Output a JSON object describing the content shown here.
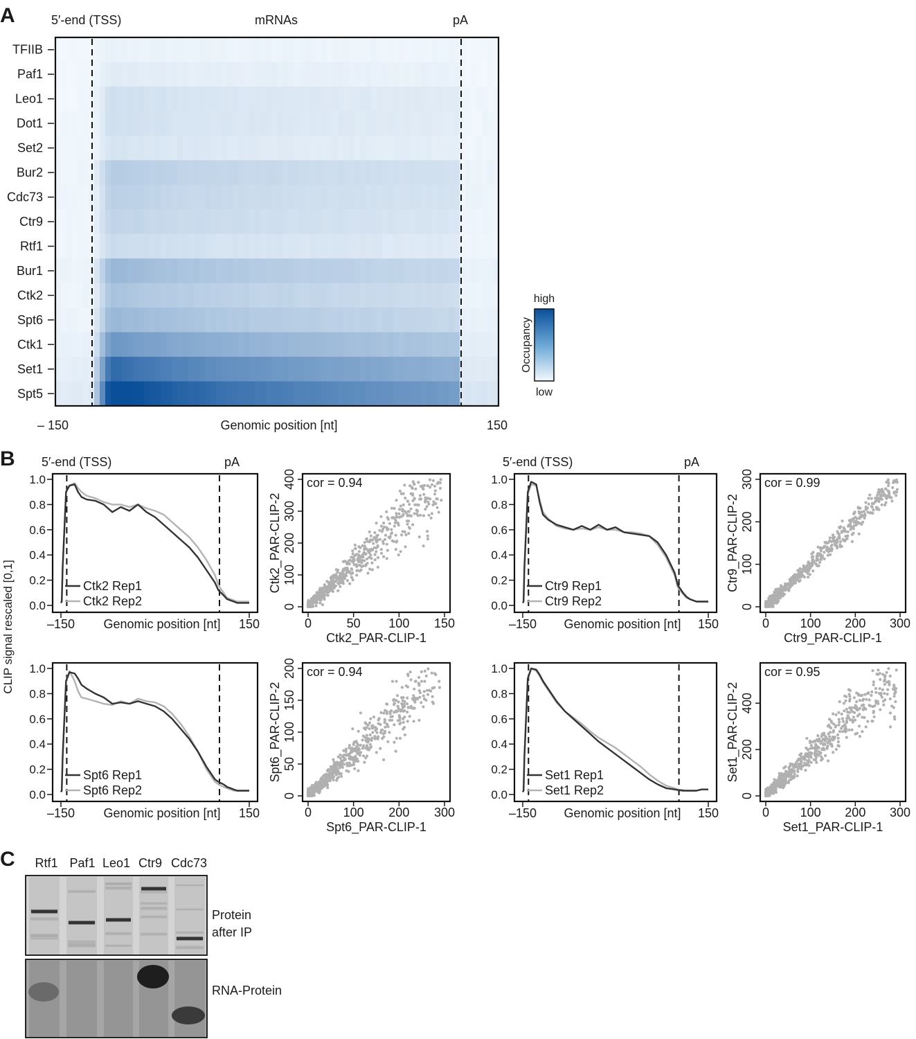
{
  "panels": {
    "a": "A",
    "b": "B",
    "c": "C"
  },
  "panel_a": {
    "top_labels": {
      "tss": "5′-end (TSS)",
      "mid": "mRNAs",
      "pa": "pA"
    },
    "xlabel": "Genomic position [nt]",
    "xticks": {
      "left": "– 150",
      "right": "150"
    },
    "rows": [
      "TFIIB",
      "Paf1",
      "Leo1",
      "Dot1",
      "Set2",
      "Bur2",
      "Cdc73",
      "Ctr9",
      "Rtf1",
      "Bur1",
      "Ctk2",
      "Spt6",
      "Ctk1",
      "Set1",
      "Spt5"
    ],
    "intensity": [
      0.03,
      0.06,
      0.12,
      0.12,
      0.1,
      0.22,
      0.2,
      0.18,
      0.14,
      0.32,
      0.26,
      0.32,
      0.48,
      0.7,
      0.9
    ],
    "colorbar": {
      "high": "high",
      "low": "low",
      "title": "Occupancy",
      "color_high": "#0a4f9a",
      "color_low": "#f2f8fd"
    }
  },
  "chart_data": [
    {
      "type": "line",
      "title": "",
      "top_labels": {
        "tss": "5′-end (TSS)",
        "pa": "pA"
      },
      "xlabel": "Genomic position [nt]",
      "ylabel": "CLIP signal rescaled [0,1]",
      "xticks": [
        "–150",
        "150"
      ],
      "yticks": [
        "0.0",
        "0.2",
        "0.4",
        "0.6",
        "0.8",
        "1.0"
      ],
      "ylim": [
        0,
        1
      ],
      "x": [
        0,
        0.5,
        1,
        3,
        5,
        8,
        10,
        12,
        15,
        20,
        25,
        30,
        35,
        40,
        45,
        50,
        55,
        60,
        65,
        70,
        75,
        80,
        85,
        90,
        92,
        95,
        97,
        99,
        101,
        103,
        106,
        110
      ],
      "series": [
        {
          "name": "Ctk2 Rep1",
          "color": "#333333",
          "values": [
            0.02,
            0.03,
            0.3,
            0.9,
            0.95,
            0.96,
            0.9,
            0.86,
            0.84,
            0.83,
            0.8,
            0.74,
            0.78,
            0.75,
            0.8,
            0.74,
            0.7,
            0.64,
            0.58,
            0.52,
            0.46,
            0.38,
            0.28,
            0.18,
            0.12,
            0.08,
            0.05,
            0.04,
            0.03,
            0.02,
            0.02,
            0.02
          ]
        },
        {
          "name": "Ctk2 Rep2",
          "color": "#b3b3b3",
          "values": [
            0.02,
            0.03,
            0.3,
            0.9,
            0.95,
            0.97,
            0.93,
            0.9,
            0.87,
            0.85,
            0.82,
            0.8,
            0.8,
            0.78,
            0.8,
            0.77,
            0.75,
            0.72,
            0.66,
            0.6,
            0.54,
            0.46,
            0.36,
            0.24,
            0.16,
            0.1,
            0.06,
            0.05,
            0.04,
            0.03,
            0.03,
            0.03
          ]
        }
      ]
    },
    {
      "type": "scatter",
      "title": "",
      "annotation": "cor =  0.94",
      "xlabel": "Ctk2_PAR-CLIP-1",
      "ylabel": "Ctk2_PAR-CLIP-2",
      "xticks": [
        "0",
        "50",
        "100",
        "150"
      ],
      "yticks": [
        "0",
        "100",
        "200",
        "300",
        "400"
      ],
      "xlim": [
        0,
        150
      ],
      "ylim": [
        0,
        400
      ],
      "cor": 0.94,
      "slope": 2.67
    },
    {
      "type": "line",
      "title": "",
      "top_labels": {
        "tss": "5′-end (TSS)",
        "pa": "pA"
      },
      "xlabel": "Genomic position [nt]",
      "ylabel": "",
      "xticks": [
        "–150",
        "150"
      ],
      "yticks": [
        "0.0",
        "0.2",
        "0.4",
        "0.6",
        "0.8",
        "1.0"
      ],
      "ylim": [
        0,
        1
      ],
      "x": [
        0,
        0.5,
        1,
        3,
        5,
        8,
        10,
        12,
        15,
        20,
        25,
        30,
        35,
        40,
        45,
        50,
        55,
        60,
        65,
        70,
        75,
        80,
        85,
        90,
        92,
        95,
        97,
        99,
        101,
        103,
        106,
        110
      ],
      "series": [
        {
          "name": "Ctr9 Rep1",
          "color": "#333333",
          "values": [
            0.02,
            0.03,
            0.3,
            0.9,
            0.98,
            0.96,
            0.82,
            0.72,
            0.68,
            0.64,
            0.62,
            0.6,
            0.63,
            0.6,
            0.64,
            0.6,
            0.62,
            0.58,
            0.57,
            0.56,
            0.55,
            0.5,
            0.4,
            0.26,
            0.16,
            0.1,
            0.07,
            0.05,
            0.04,
            0.03,
            0.03,
            0.03
          ]
        },
        {
          "name": "Ctr9 Rep2",
          "color": "#b3b3b3",
          "values": [
            0.02,
            0.03,
            0.3,
            0.88,
            0.96,
            0.95,
            0.84,
            0.74,
            0.69,
            0.63,
            0.61,
            0.6,
            0.61,
            0.6,
            0.62,
            0.6,
            0.6,
            0.58,
            0.58,
            0.57,
            0.55,
            0.48,
            0.38,
            0.24,
            0.14,
            0.09,
            0.06,
            0.05,
            0.04,
            0.03,
            0.03,
            0.03
          ]
        }
      ]
    },
    {
      "type": "scatter",
      "title": "",
      "annotation": "cor =  0.99",
      "xlabel": "Ctr9_PAR-CLIP-1",
      "ylabel": "Ctr9_PAR-CLIP-2",
      "xticks": [
        "0",
        "100",
        "200",
        "300"
      ],
      "yticks": [
        "0",
        "100",
        "200",
        "300"
      ],
      "xlim": [
        0,
        300
      ],
      "ylim": [
        0,
        300
      ],
      "cor": 0.99,
      "slope": 1.0
    },
    {
      "type": "line",
      "title": "",
      "xlabel": "Genomic position [nt]",
      "ylabel": "",
      "xticks": [
        "–150",
        "150"
      ],
      "yticks": [
        "0.0",
        "0.2",
        "0.4",
        "0.6",
        "0.8",
        "1.0"
      ],
      "ylim": [
        0,
        1
      ],
      "x": [
        0,
        0.5,
        1,
        3,
        5,
        8,
        10,
        12,
        15,
        20,
        25,
        30,
        35,
        40,
        45,
        50,
        55,
        60,
        65,
        70,
        75,
        80,
        85,
        90,
        92,
        95,
        97,
        99,
        101,
        103,
        106,
        110
      ],
      "series": [
        {
          "name": "Spt6 Rep1",
          "color": "#333333",
          "values": [
            0.02,
            0.03,
            0.3,
            0.9,
            0.97,
            0.96,
            0.92,
            0.87,
            0.84,
            0.8,
            0.77,
            0.72,
            0.73,
            0.72,
            0.74,
            0.72,
            0.7,
            0.66,
            0.6,
            0.52,
            0.44,
            0.34,
            0.22,
            0.12,
            0.1,
            0.08,
            0.06,
            0.05,
            0.04,
            0.03,
            0.03,
            0.03
          ]
        },
        {
          "name": "Spt6 Rep2",
          "color": "#b3b3b3",
          "values": [
            0.02,
            0.03,
            0.3,
            0.9,
            0.98,
            0.9,
            0.82,
            0.77,
            0.76,
            0.74,
            0.72,
            0.71,
            0.74,
            0.72,
            0.76,
            0.74,
            0.73,
            0.7,
            0.64,
            0.56,
            0.46,
            0.34,
            0.2,
            0.1,
            0.08,
            0.06,
            0.05,
            0.04,
            0.03,
            0.03,
            0.03,
            0.03
          ]
        }
      ]
    },
    {
      "type": "scatter",
      "title": "",
      "annotation": "cor =  0.94",
      "xlabel": "Spt6_PAR-CLIP-1",
      "ylabel": "Spt6_PAR-CLIP-2",
      "xticks": [
        "0",
        "100",
        "200",
        "300"
      ],
      "yticks": [
        "0",
        "50",
        "100",
        "150",
        "200"
      ],
      "xlim": [
        0,
        300
      ],
      "ylim": [
        0,
        200
      ],
      "cor": 0.94,
      "slope": 0.67
    },
    {
      "type": "line",
      "title": "",
      "xlabel": "Genomic position [nt]",
      "ylabel": "",
      "xticks": [
        "–150",
        "150"
      ],
      "yticks": [
        "0.0",
        "0.2",
        "0.4",
        "0.6",
        "0.8",
        "1.0"
      ],
      "ylim": [
        0,
        1
      ],
      "x": [
        0,
        0.5,
        1,
        3,
        5,
        8,
        10,
        12,
        15,
        20,
        25,
        30,
        35,
        40,
        45,
        50,
        55,
        60,
        65,
        70,
        75,
        80,
        85,
        90,
        92,
        95,
        97,
        99,
        101,
        103,
        106,
        110
      ],
      "series": [
        {
          "name": "Set1 Rep1",
          "color": "#333333",
          "values": [
            0.02,
            0.03,
            0.3,
            0.92,
            1.0,
            0.99,
            0.95,
            0.9,
            0.84,
            0.74,
            0.66,
            0.6,
            0.54,
            0.48,
            0.42,
            0.37,
            0.32,
            0.27,
            0.22,
            0.17,
            0.12,
            0.08,
            0.05,
            0.04,
            0.035,
            0.03,
            0.03,
            0.03,
            0.03,
            0.03,
            0.04,
            0.04
          ]
        },
        {
          "name": "Set1 Rep2",
          "color": "#b3b3b3",
          "values": [
            0.02,
            0.03,
            0.3,
            0.92,
            1.0,
            0.98,
            0.94,
            0.89,
            0.83,
            0.73,
            0.66,
            0.61,
            0.56,
            0.5,
            0.45,
            0.41,
            0.37,
            0.32,
            0.27,
            0.22,
            0.16,
            0.11,
            0.07,
            0.05,
            0.04,
            0.035,
            0.03,
            0.03,
            0.03,
            0.03,
            0.04,
            0.04
          ]
        }
      ]
    },
    {
      "type": "scatter",
      "title": "",
      "annotation": "cor =  0.95",
      "xlabel": "Set1_PAR-CLIP-1",
      "ylabel": "Set1_PAR-CLIP-2",
      "xticks": [
        "0",
        "100",
        "200",
        "300"
      ],
      "yticks": [
        "0",
        "200",
        "400"
      ],
      "xlim": [
        0,
        300
      ],
      "ylim": [
        0,
        550
      ],
      "cor": 0.95,
      "slope": 1.8
    }
  ],
  "panel_c": {
    "lanes": [
      "Rtf1",
      "Paf1",
      "Leo1",
      "Ctr9",
      "Cdc73"
    ],
    "labels": {
      "protein_1": "Protein",
      "protein_2": "after IP",
      "rna": "RNA-Protein"
    }
  }
}
